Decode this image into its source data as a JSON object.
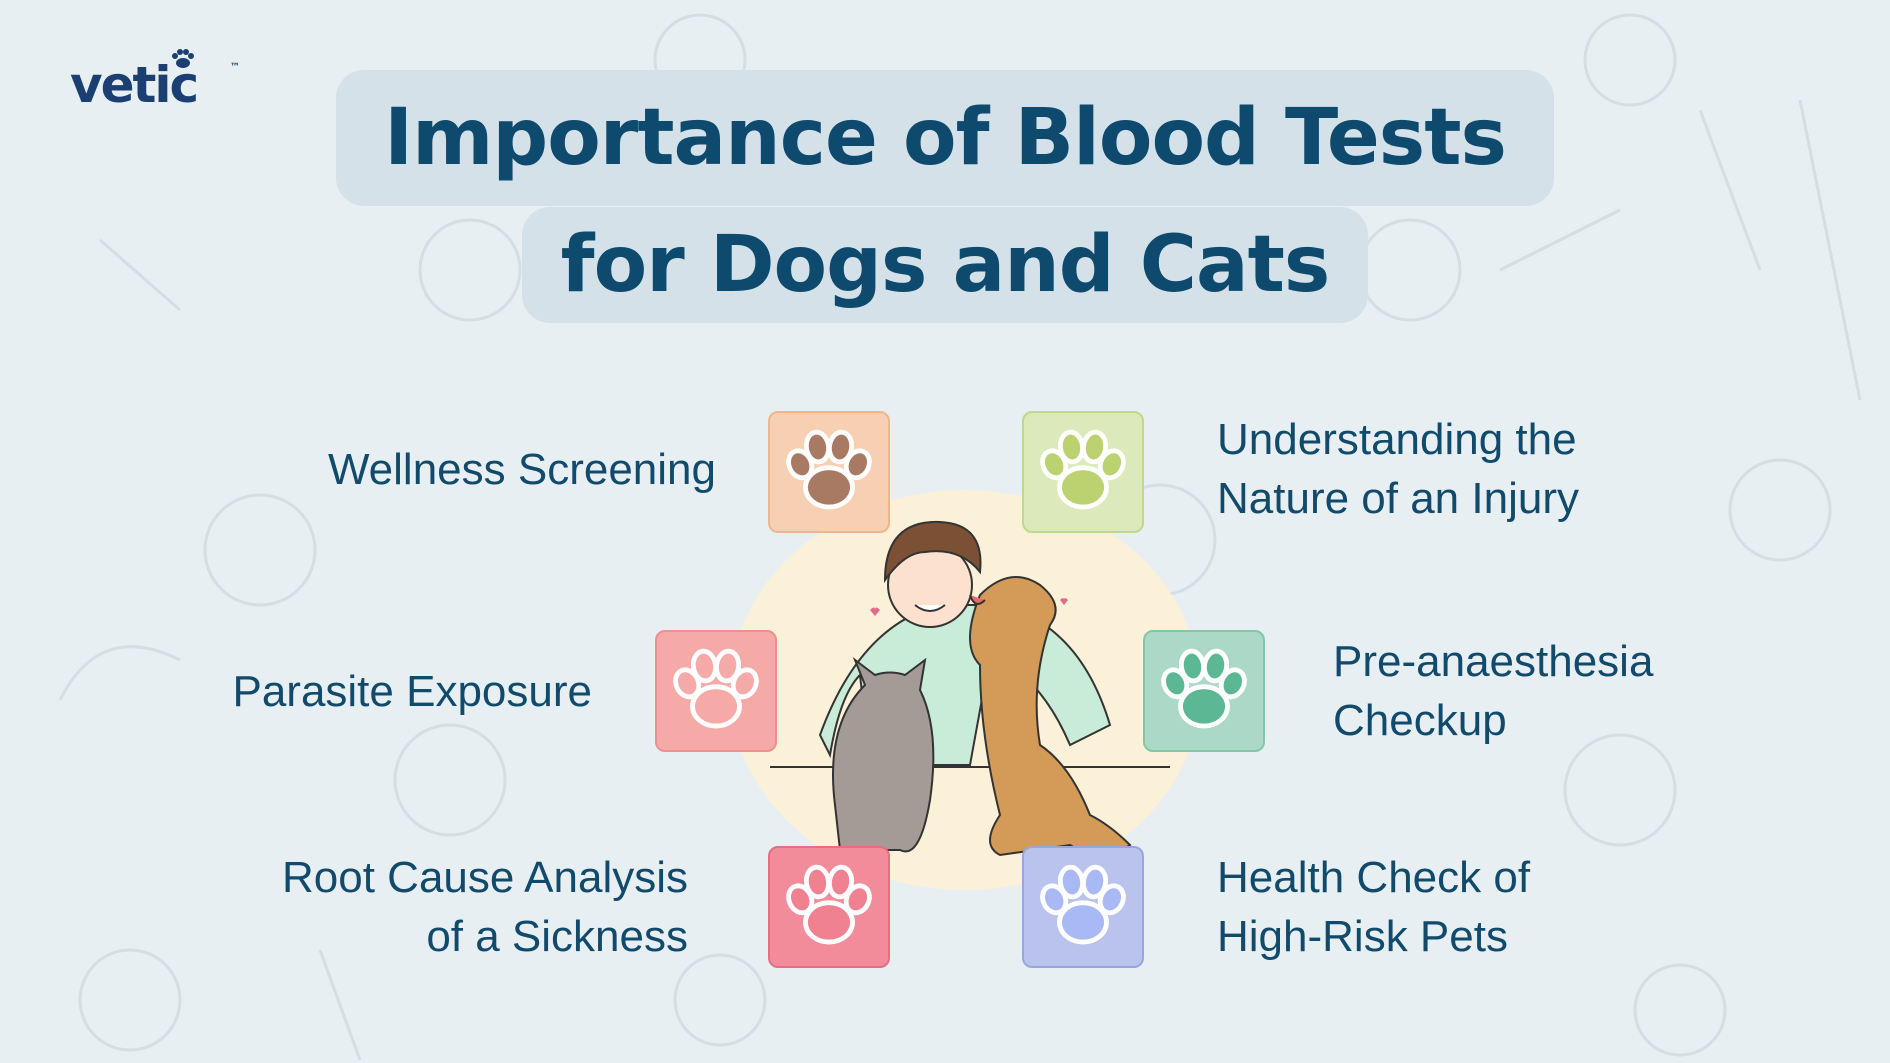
{
  "logo": {
    "text": "vetic",
    "trademark": "™"
  },
  "title": {
    "line1": "Importance of Blood Tests",
    "line2": "for Dogs and Cats"
  },
  "items": [
    {
      "label_lines": [
        "Wellness Screening"
      ],
      "tile_color": "#f7cfb2",
      "paw_color": "#a97a63",
      "icon": "paw-icon"
    },
    {
      "label_lines": [
        "Understanding the",
        "Nature of an Injury"
      ],
      "tile_color": "#dce9bb",
      "paw_color": "#bcd16f",
      "icon": "paw-icon"
    },
    {
      "label_lines": [
        "Parasite Exposure"
      ],
      "tile_color": "#f5aaa8",
      "paw_color": "#f5aaa8",
      "icon": "paw-icon"
    },
    {
      "label_lines": [
        "Pre-anaesthesia",
        "Checkup"
      ],
      "tile_color": "#acd9c7",
      "paw_color": "#5cb795",
      "icon": "paw-icon"
    },
    {
      "label_lines": [
        "Root Cause Analysis",
        "of a Sickness"
      ],
      "tile_color": "#f28c9a",
      "paw_color": "#ef8190",
      "icon": "paw-icon"
    },
    {
      "label_lines": [
        "Health Check of",
        "High-Risk Pets"
      ],
      "tile_color": "#b9c3eb",
      "paw_color": "#a9b9f5",
      "icon": "paw-icon"
    }
  ],
  "colors": {
    "background": "#e7eff3",
    "title_text": "#0e4a6e",
    "title_box": "#d5e1e9",
    "brand": "#1b3f73"
  }
}
